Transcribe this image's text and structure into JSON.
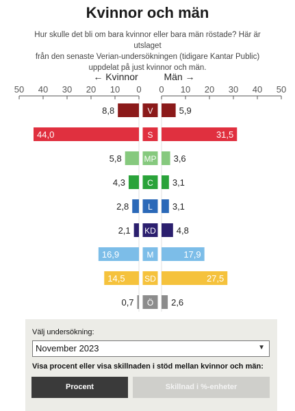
{
  "title": "Kvinnor och män",
  "subtitle_lines": [
    "Hur skulle det bli om bara kvinnor eller bara män röstade? Här är utslaget",
    "från den senaste Verian-undersökningen (tidigare Kantar Public)",
    "uppdelat på just kvinnor och män."
  ],
  "chart_data": {
    "type": "bar",
    "orientation": "horizontal-butterfly",
    "left_axis_label": "← Kvinnor",
    "right_axis_label": "Män →",
    "ticks_left": [
      50,
      40,
      30,
      20,
      10,
      0
    ],
    "ticks_right": [
      0,
      10,
      20,
      30,
      40,
      50
    ],
    "xlim": [
      0,
      50
    ],
    "categories": [
      "V",
      "S",
      "MP",
      "C",
      "L",
      "KD",
      "M",
      "SD",
      "Ö"
    ],
    "series": [
      {
        "name": "Kvinnor",
        "values": [
          8.8,
          44.0,
          5.8,
          4.3,
          2.8,
          2.1,
          16.9,
          14.5,
          0.7
        ]
      },
      {
        "name": "Män",
        "values": [
          5.9,
          31.5,
          3.6,
          3.1,
          3.1,
          4.8,
          17.9,
          27.5,
          2.6
        ]
      }
    ],
    "value_labels_left": [
      "8,8",
      "44,0",
      "5,8",
      "4,3",
      "2,8",
      "2,1",
      "16,9",
      "14,5",
      "0,7"
    ],
    "value_labels_right": [
      "5,9",
      "31,5",
      "3,6",
      "3,1",
      "3,1",
      "4,8",
      "17,9",
      "27,5",
      "2,6"
    ],
    "colors": [
      "#8b1a1a",
      "#e0303f",
      "#86c97e",
      "#2aa33a",
      "#2b69b8",
      "#2b1f6e",
      "#7cbde8",
      "#f5c23c",
      "#8c8c8c"
    ]
  },
  "controls": {
    "select_label": "Välj undersökning:",
    "select_value": "November 2023",
    "mode_label": "Visa procent eller visa skillnaden i stöd mellan kvinnor och män:",
    "btn_percent": "Procent",
    "btn_diff": "Skillnad i %-enheter"
  }
}
